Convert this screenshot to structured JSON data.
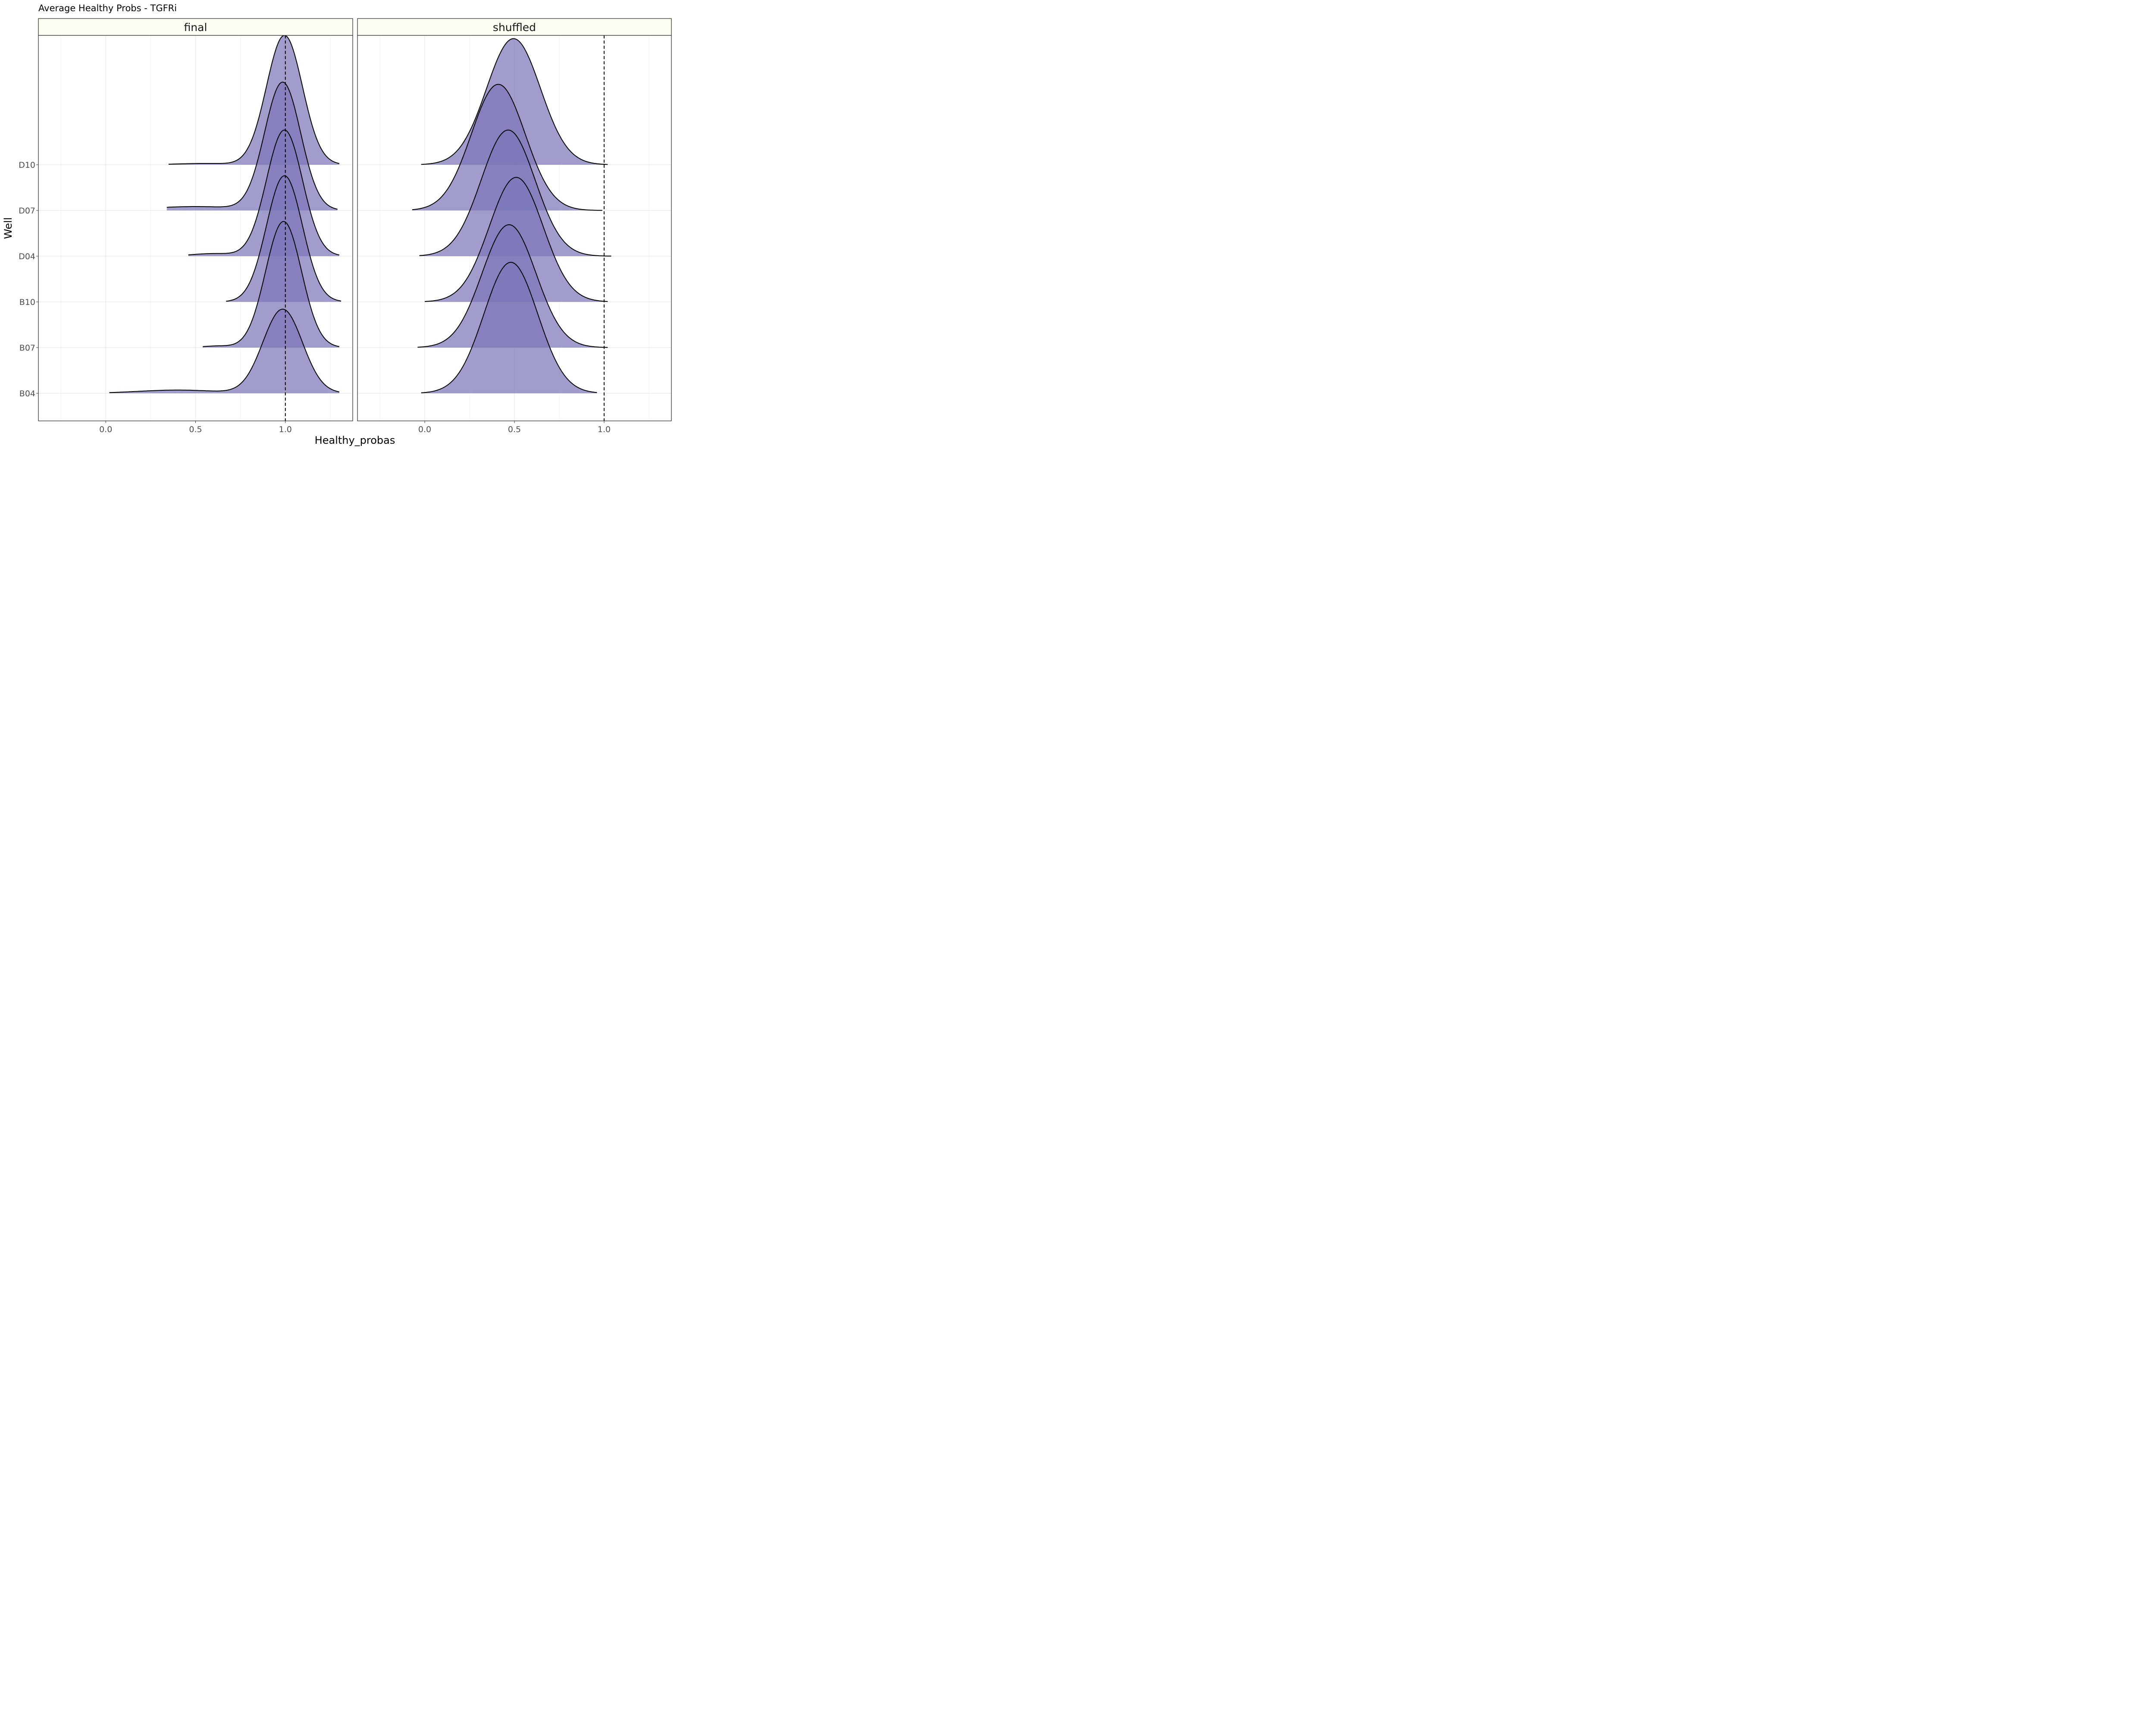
{
  "chart_data": {
    "type": "ridgeline",
    "title": "Average Healthy Probs - TGFRi",
    "xlabel": "Healthy_probas",
    "ylabel": "Well",
    "xlim": [
      -0.375,
      1.375
    ],
    "x_ticks": [
      "0.0",
      "0.5",
      "1.0"
    ],
    "x_tick_values": [
      0,
      0.5,
      1.0
    ],
    "wells": [
      "B04",
      "B07",
      "B10",
      "D04",
      "D07",
      "D10"
    ],
    "reference_line": 1.0,
    "fill_color": "#7b76b8",
    "fill_opacity": 0.72,
    "grid": true,
    "panels": [
      {
        "label": "final",
        "ridges": [
          {
            "well": "B04",
            "min": 0.02,
            "max": 1.3,
            "components": [
              {
                "mu": 0.985,
                "sd": 0.11,
                "h": 2.6
              },
              {
                "mu": 0.4,
                "sd": 0.22,
                "h": 0.1
              }
            ]
          },
          {
            "well": "B07",
            "min": 0.54,
            "max": 1.3,
            "components": [
              {
                "mu": 0.99,
                "sd": 0.1,
                "h": 3.9
              },
              {
                "mu": 0.62,
                "sd": 0.08,
                "h": 0.05
              }
            ]
          },
          {
            "well": "B10",
            "min": 0.67,
            "max": 1.31,
            "components": [
              {
                "mu": 0.995,
                "sd": 0.1,
                "h": 3.9
              }
            ]
          },
          {
            "well": "D04",
            "min": 0.46,
            "max": 1.3,
            "components": [
              {
                "mu": 0.995,
                "sd": 0.1,
                "h": 3.9
              },
              {
                "mu": 0.6,
                "sd": 0.12,
                "h": 0.08
              }
            ]
          },
          {
            "well": "D07",
            "min": 0.34,
            "max": 1.29,
            "components": [
              {
                "mu": 0.985,
                "sd": 0.1,
                "h": 3.95
              },
              {
                "mu": 0.5,
                "sd": 0.25,
                "h": 0.12
              }
            ]
          },
          {
            "well": "D10",
            "min": 0.35,
            "max": 1.3,
            "components": [
              {
                "mu": 0.995,
                "sd": 0.1,
                "h": 4.0
              },
              {
                "mu": 0.55,
                "sd": 0.15,
                "h": 0.04
              }
            ]
          }
        ]
      },
      {
        "label": "shuffled",
        "ridges": [
          {
            "well": "B04",
            "min": -0.02,
            "max": 0.96,
            "components": [
              {
                "mu": 0.48,
                "sd": 0.15,
                "h": 4.05
              }
            ]
          },
          {
            "well": "B07",
            "min": -0.04,
            "max": 1.02,
            "components": [
              {
                "mu": 0.47,
                "sd": 0.15,
                "h": 3.8
              }
            ]
          },
          {
            "well": "B10",
            "min": 0.0,
            "max": 1.02,
            "components": [
              {
                "mu": 0.51,
                "sd": 0.15,
                "h": 3.85
              }
            ]
          },
          {
            "well": "D04",
            "min": -0.03,
            "max": 1.04,
            "components": [
              {
                "mu": 0.465,
                "sd": 0.15,
                "h": 3.9
              }
            ]
          },
          {
            "well": "D07",
            "min": -0.07,
            "max": 0.99,
            "components": [
              {
                "mu": 0.41,
                "sd": 0.15,
                "h": 3.9
              }
            ]
          },
          {
            "well": "D10",
            "min": -0.02,
            "max": 1.02,
            "components": [
              {
                "mu": 0.495,
                "sd": 0.15,
                "h": 3.9
              }
            ]
          }
        ]
      }
    ]
  }
}
